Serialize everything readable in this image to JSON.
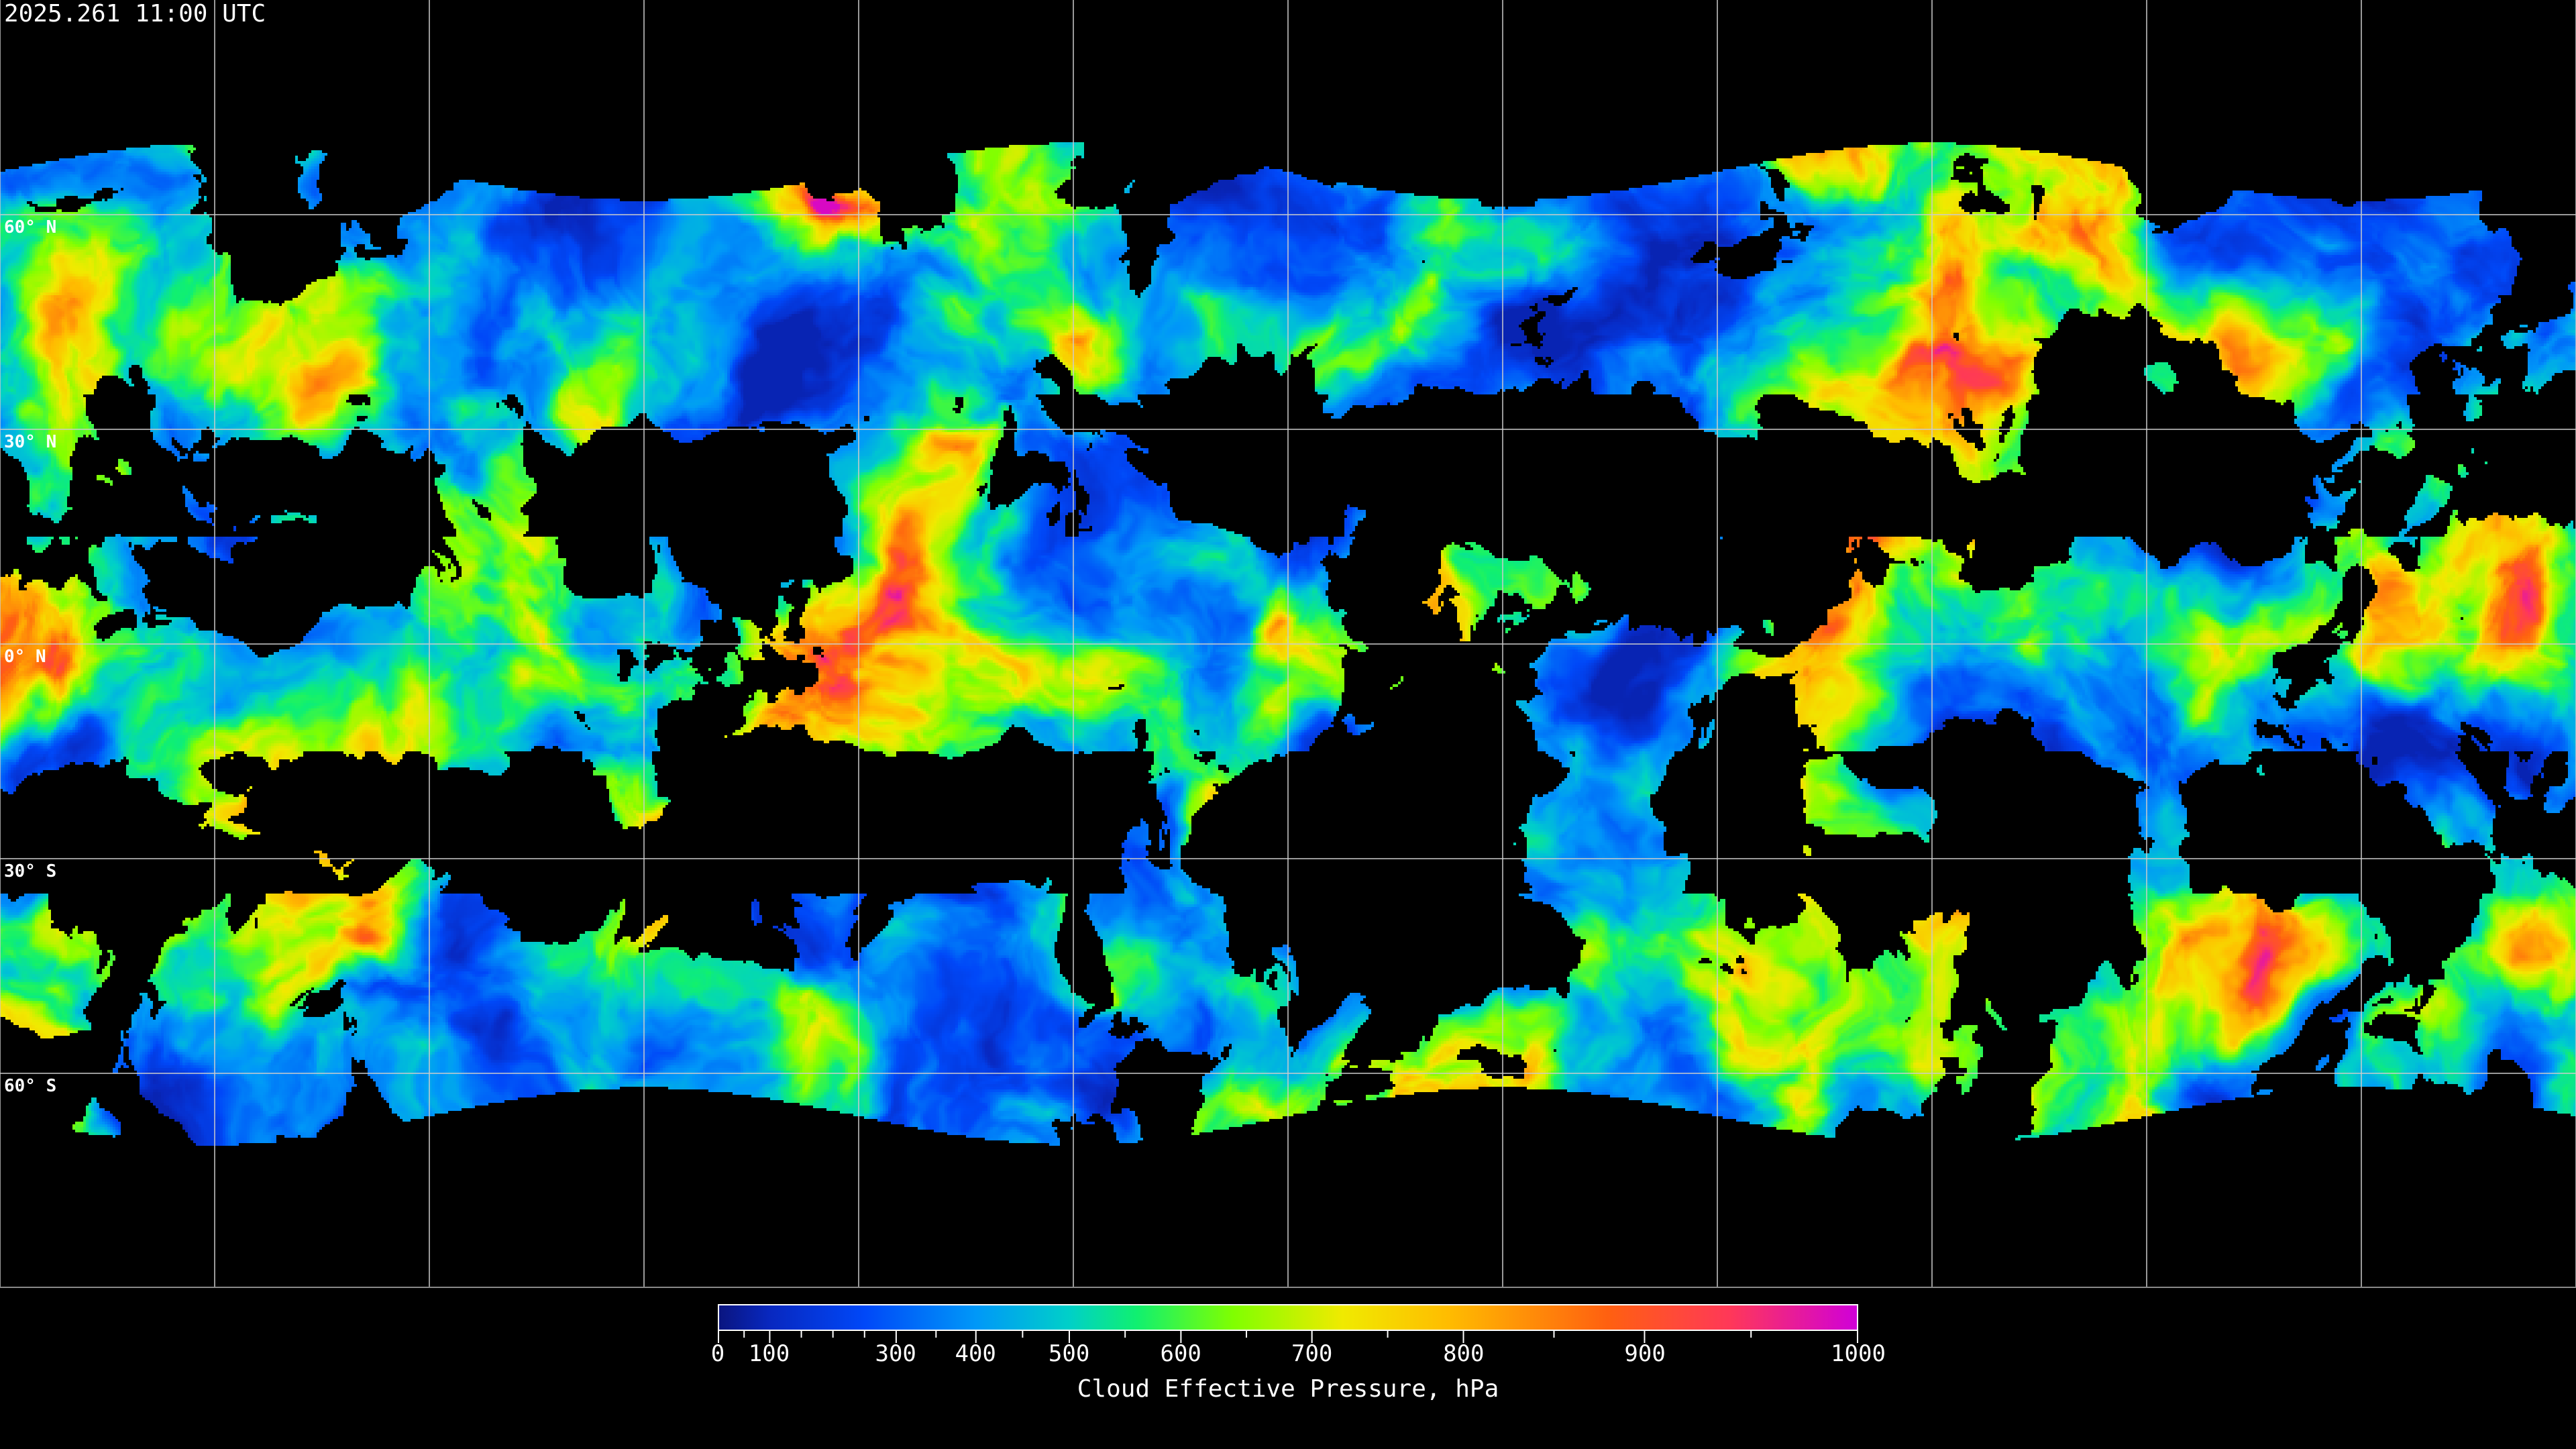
{
  "title": "2025.261 11:00 UTC",
  "chart_data": {
    "type": "heatmap",
    "title": "2025.261 11:00 UTC",
    "projection": "equirectangular global map",
    "grid": true,
    "gridline_longitudes_deg": [
      -180,
      -150,
      -120,
      -90,
      -60,
      -30,
      0,
      30,
      60,
      90,
      120,
      150,
      180
    ],
    "gridline_latitudes_deg": [
      60,
      30,
      0,
      -30,
      -60
    ],
    "lat_labels": [
      "60° N",
      "30° N",
      "0° N",
      "30° S",
      "60° S"
    ],
    "colorbar": {
      "label": "Cloud Effective Pressure, hPa",
      "range": [
        0,
        1000
      ],
      "tick_labels": [
        "0",
        "100",
        "300",
        "400",
        "500",
        "600",
        "700",
        "800",
        "900",
        "1000"
      ],
      "tick_values": [
        0,
        100,
        300,
        400,
        500,
        600,
        700,
        800,
        900,
        1000
      ],
      "tick_fractions": [
        0,
        0.045,
        0.156,
        0.226,
        0.308,
        0.406,
        0.521,
        0.654,
        0.813,
        1.0
      ],
      "colormap": [
        {
          "value": 0,
          "color": "#0a1580"
        },
        {
          "value": 100,
          "color": "#0828c0"
        },
        {
          "value": 250,
          "color": "#0048f8"
        },
        {
          "value": 400,
          "color": "#0098f8"
        },
        {
          "value": 500,
          "color": "#00d0c8"
        },
        {
          "value": 560,
          "color": "#10f070"
        },
        {
          "value": 640,
          "color": "#80ff00"
        },
        {
          "value": 720,
          "color": "#f0ea00"
        },
        {
          "value": 790,
          "color": "#ffbc00"
        },
        {
          "value": 880,
          "color": "#ff6010"
        },
        {
          "value": 940,
          "color": "#ff3858"
        },
        {
          "value": 1000,
          "color": "#d000d8"
        }
      ],
      "no_cloud_color": "#000000"
    }
  }
}
